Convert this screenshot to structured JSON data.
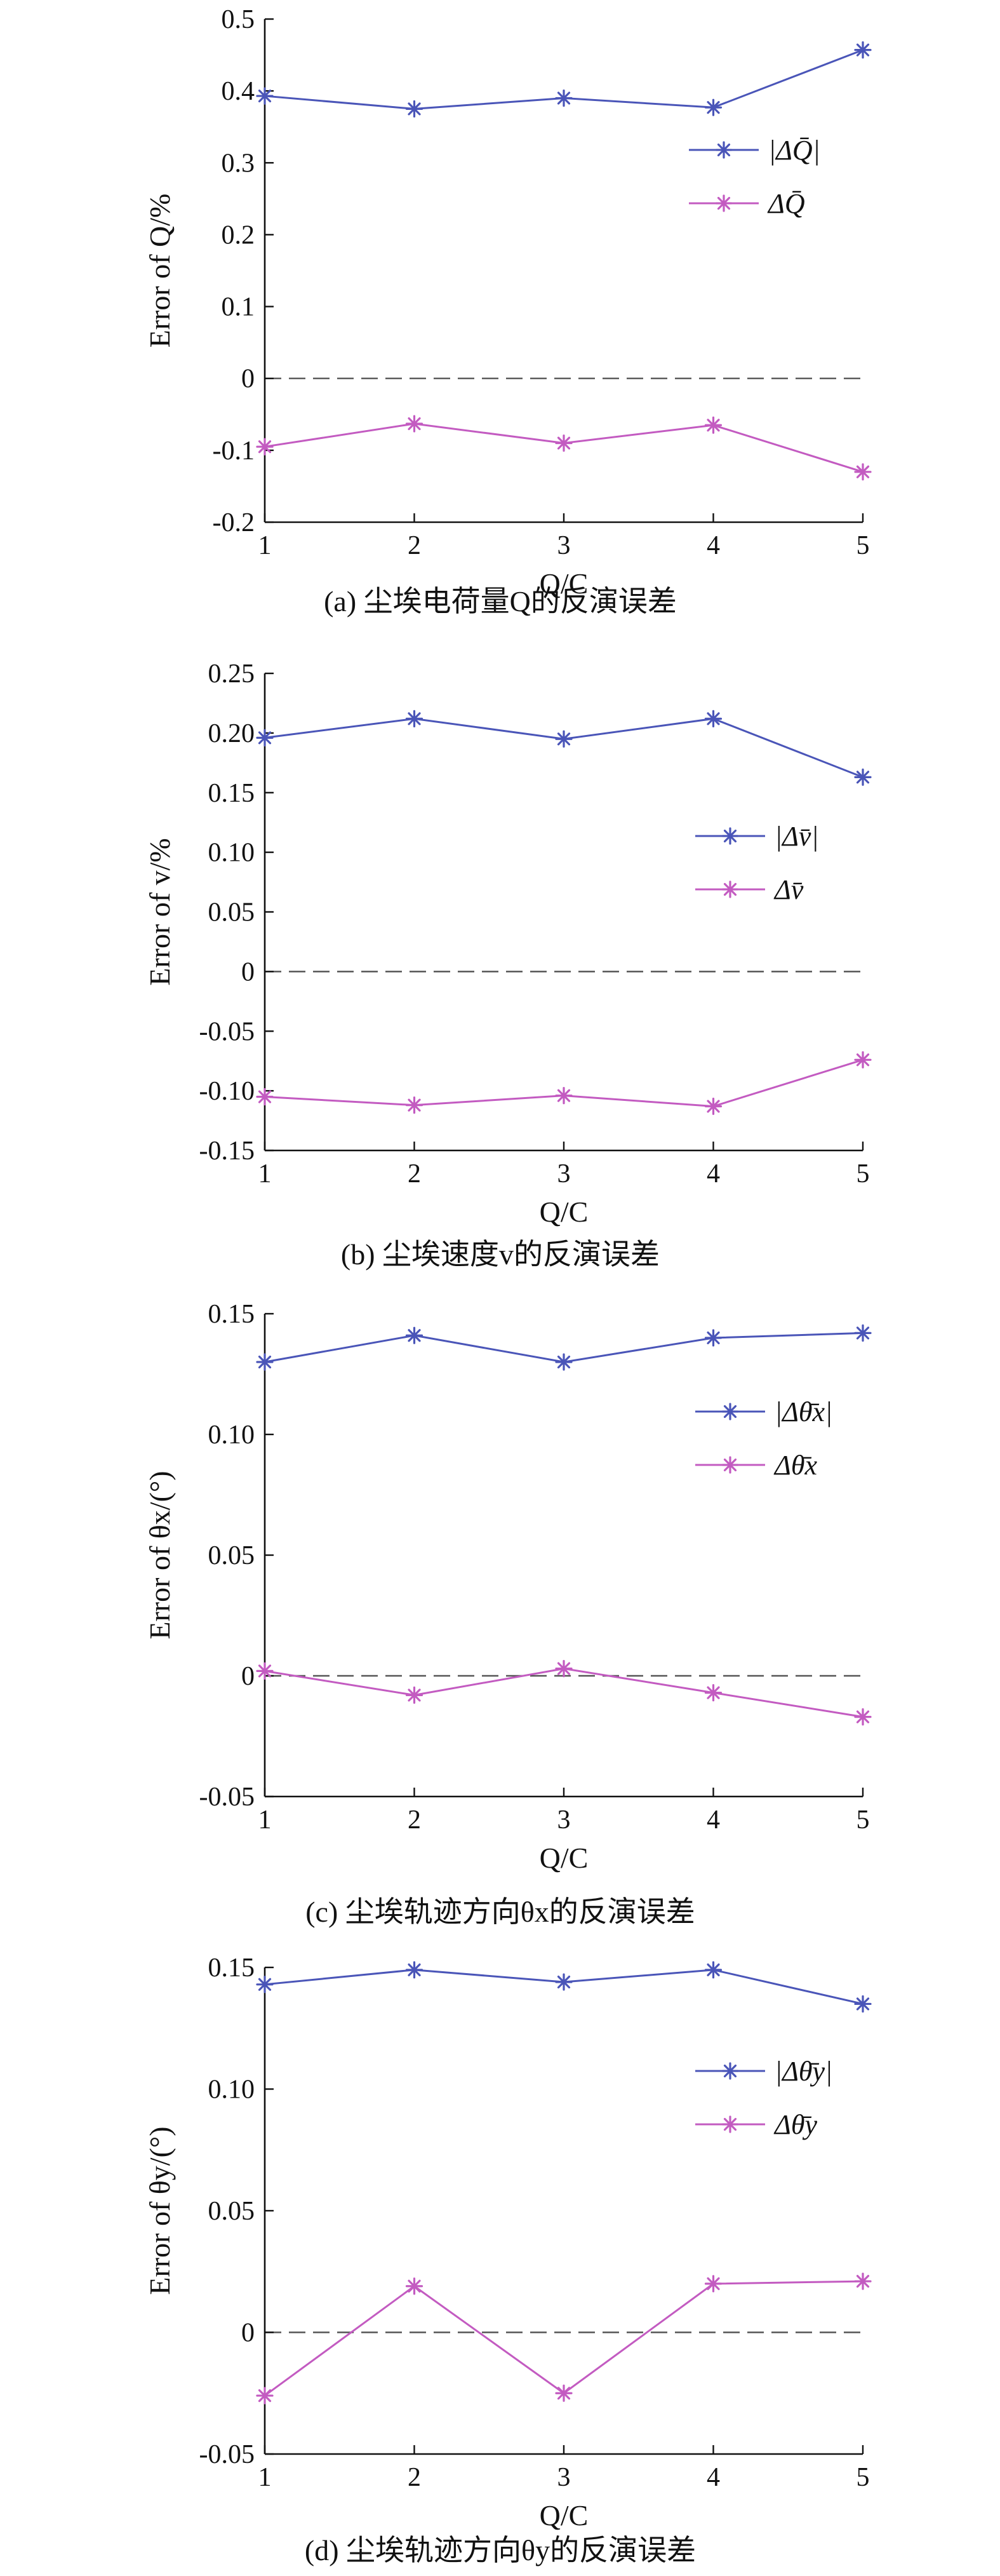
{
  "chart_data": [
    {
      "type": "line",
      "panel_caption": "(a) 尘埃电荷量Q的反演误差",
      "ylabel": "Error of Q/%",
      "xlabel": "Q/C",
      "x": [
        1,
        2,
        3,
        4,
        5
      ],
      "xlim": [
        1,
        5
      ],
      "ylim": [
        -0.2,
        0.5
      ],
      "yticks": [
        -0.2,
        -0.1,
        0,
        0.1,
        0.2,
        0.3,
        0.4,
        0.5
      ],
      "ytick_labels": [
        "-0.2",
        "-0.1",
        "0",
        "0.1",
        "0.2",
        "0.3",
        "0.4",
        "0.5"
      ],
      "xtick_labels": [
        "1",
        "2",
        "3",
        "4",
        "5"
      ],
      "zero_reference_line": true,
      "legend_position": "top-right",
      "series": [
        {
          "name": "|ΔQ̄|",
          "values": [
            0.393,
            0.375,
            0.39,
            0.377,
            0.457
          ],
          "color": "#4a55b8"
        },
        {
          "name": "ΔQ̄",
          "values": [
            -0.095,
            -0.063,
            -0.09,
            -0.065,
            -0.13
          ],
          "color": "#c35bc1"
        }
      ]
    },
    {
      "type": "line",
      "panel_caption": "(b) 尘埃速度v的反演误差",
      "ylabel": "Error of v/%",
      "xlabel": "Q/C",
      "x": [
        1,
        2,
        3,
        4,
        5
      ],
      "xlim": [
        1,
        5
      ],
      "ylim": [
        -0.15,
        0.25
      ],
      "yticks": [
        -0.15,
        -0.1,
        -0.05,
        0,
        0.05,
        0.1,
        0.15,
        0.2,
        0.25
      ],
      "ytick_labels": [
        "-0.15",
        "-0.10",
        "-0.05",
        "0",
        "0.05",
        "0.10",
        "0.15",
        "0.20",
        "0.25"
      ],
      "xtick_labels": [
        "1",
        "2",
        "3",
        "4",
        "5"
      ],
      "zero_reference_line": true,
      "legend_position": "right",
      "series": [
        {
          "name": "|Δv̄|",
          "values": [
            0.196,
            0.212,
            0.195,
            0.212,
            0.163
          ],
          "color": "#4a55b8"
        },
        {
          "name": "Δv̄",
          "values": [
            -0.105,
            -0.112,
            -0.104,
            -0.113,
            -0.074
          ],
          "color": "#c35bc1"
        }
      ]
    },
    {
      "type": "line",
      "panel_caption": "(c) 尘埃轨迹方向θx的反演误差",
      "ylabel": "Error of θx/(°)",
      "xlabel": "Q/C",
      "x": [
        1,
        2,
        3,
        4,
        5
      ],
      "xlim": [
        1,
        5
      ],
      "ylim": [
        -0.05,
        0.15
      ],
      "yticks": [
        -0.05,
        0,
        0.05,
        0.1,
        0.15
      ],
      "ytick_labels": [
        "-0.05",
        "0",
        "0.05",
        "0.10",
        "0.15"
      ],
      "xtick_labels": [
        "1",
        "2",
        "3",
        "4",
        "5"
      ],
      "zero_reference_line": true,
      "legend_position": "top-right",
      "series": [
        {
          "name": "|Δθ̄x|",
          "values": [
            0.13,
            0.141,
            0.13,
            0.14,
            0.142
          ],
          "color": "#4a55b8"
        },
        {
          "name": "Δθ̄x",
          "values": [
            0.002,
            -0.008,
            0.003,
            -0.007,
            -0.017
          ],
          "color": "#c35bc1"
        }
      ]
    },
    {
      "type": "line",
      "panel_caption": "(d) 尘埃轨迹方向θy的反演误差",
      "ylabel": "Error of θy/(°)",
      "xlabel": "Q/C",
      "x": [
        1,
        2,
        3,
        4,
        5
      ],
      "xlim": [
        1,
        5
      ],
      "ylim": [
        -0.05,
        0.15
      ],
      "yticks": [
        -0.05,
        0,
        0.05,
        0.1,
        0.15
      ],
      "ytick_labels": [
        "-0.05",
        "0",
        "0.05",
        "0.10",
        "0.15"
      ],
      "xtick_labels": [
        "1",
        "2",
        "3",
        "4",
        "5"
      ],
      "zero_reference_line": true,
      "legend_position": "top-right",
      "series": [
        {
          "name": "|Δθ̄y|",
          "values": [
            0.143,
            0.149,
            0.144,
            0.149,
            0.135
          ],
          "color": "#4a55b8"
        },
        {
          "name": "Δθ̄y",
          "values": [
            -0.026,
            0.019,
            -0.025,
            0.02,
            0.021
          ],
          "color": "#c35bc1"
        }
      ]
    }
  ]
}
